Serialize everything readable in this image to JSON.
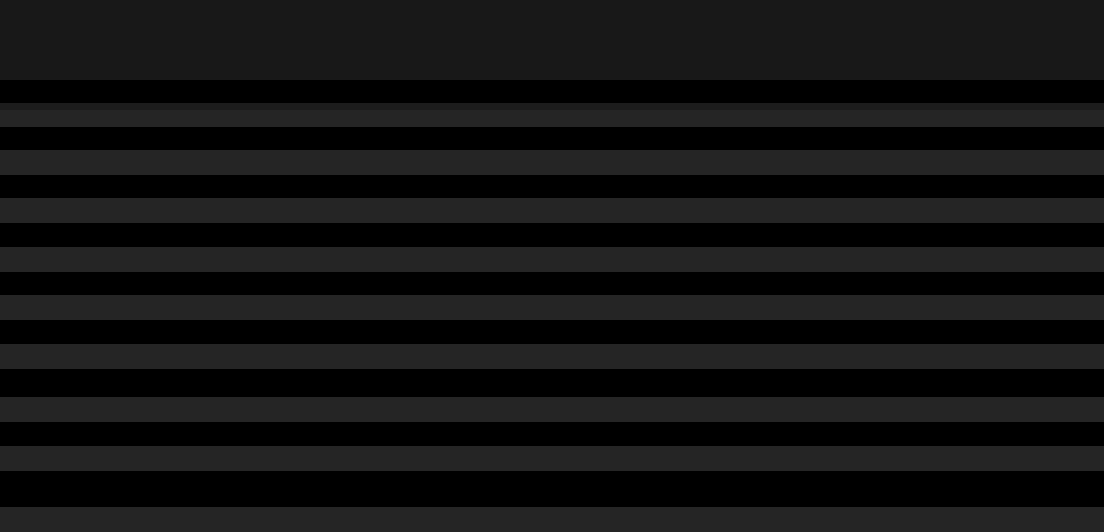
{
  "colors": {
    "header": "#181818",
    "background": "#000000",
    "row_stripe": "#252525",
    "row_separator": "#1c1c1c"
  }
}
